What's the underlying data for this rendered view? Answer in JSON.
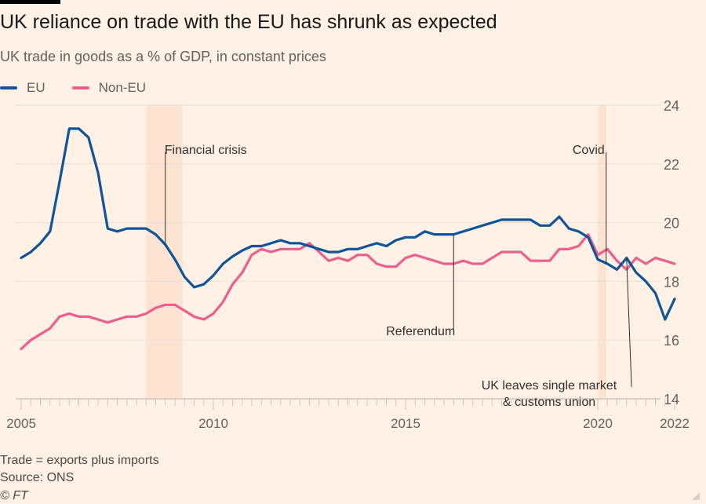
{
  "title": "UK reliance on trade with the EU has shrunk as expected",
  "subtitle": "UK trade in goods as a % of GDP, in constant prices",
  "footer": {
    "note": "Trade = exports plus imports",
    "source": "Source: ONS",
    "copyright": "© FT"
  },
  "colors": {
    "background": "#fff1e5",
    "eu": "#0f5499",
    "non_eu": "#eb5e8d",
    "shade": "#fde3d2",
    "grid": "#e9dfd7"
  },
  "chart_data": {
    "type": "line",
    "title": "UK reliance on trade with the EU has shrunk as expected",
    "subtitle": "UK trade in goods as a % of GDP, in constant prices",
    "x_start": "2005 Q1",
    "x_frequency": "quarterly",
    "xlim": [
      2005,
      2022
    ],
    "ylim": [
      14,
      24
    ],
    "x_ticks": [
      "2005",
      "2010",
      "2015",
      "2020",
      "2022"
    ],
    "y_ticks": [
      "14",
      "16",
      "18",
      "20",
      "22",
      "24"
    ],
    "y_axis_side": "right",
    "grid": true,
    "legend_placement": "top-left",
    "series": [
      {
        "name": "EU",
        "color": "#0f5499",
        "values": [
          18.8,
          19.0,
          19.3,
          19.7,
          21.4,
          23.2,
          23.2,
          22.9,
          21.7,
          19.8,
          19.7,
          19.8,
          19.8,
          19.8,
          19.6,
          19.25,
          18.75,
          18.15,
          17.8,
          17.9,
          18.2,
          18.6,
          18.85,
          19.05,
          19.2,
          19.2,
          19.3,
          19.4,
          19.3,
          19.3,
          19.2,
          19.1,
          19.0,
          19.0,
          19.1,
          19.1,
          19.2,
          19.3,
          19.2,
          19.4,
          19.5,
          19.5,
          19.7,
          19.6,
          19.6,
          19.6,
          19.7,
          19.8,
          19.9,
          20.0,
          20.1,
          20.1,
          20.1,
          20.1,
          19.9,
          19.9,
          20.2,
          19.8,
          19.7,
          19.5,
          18.75,
          18.6,
          18.4,
          18.8,
          18.3,
          18.0,
          17.6,
          16.7,
          17.4
        ]
      },
      {
        "name": "Non-EU",
        "color": "#eb5e8d",
        "values": [
          15.7,
          16.0,
          16.2,
          16.4,
          16.8,
          16.9,
          16.8,
          16.8,
          16.7,
          16.6,
          16.7,
          16.8,
          16.8,
          16.9,
          17.1,
          17.2,
          17.2,
          17.0,
          16.8,
          16.7,
          16.9,
          17.3,
          17.9,
          18.3,
          18.9,
          19.1,
          19.0,
          19.1,
          19.1,
          19.1,
          19.3,
          19.0,
          18.7,
          18.8,
          18.7,
          18.9,
          18.9,
          18.6,
          18.5,
          18.5,
          18.8,
          18.9,
          18.8,
          18.7,
          18.6,
          18.6,
          18.7,
          18.6,
          18.6,
          18.8,
          19.0,
          19.0,
          19.0,
          18.7,
          18.7,
          18.7,
          19.1,
          19.1,
          19.2,
          19.6,
          18.9,
          19.1,
          18.7,
          18.4,
          18.8,
          18.6,
          18.8,
          18.7,
          18.6
        ]
      }
    ],
    "shaded_periods": [
      {
        "label": "Financial crisis",
        "from": 2008.25,
        "to": 2009.2
      },
      {
        "label": "Covid",
        "from": 2020.0,
        "to": 2020.22
      }
    ],
    "annotations": [
      {
        "text": "Financial crisis",
        "x": 2008.75,
        "y_from": 22.4,
        "y_to": 19.2
      },
      {
        "text": "Referendum",
        "x": 2016.25,
        "y_from": 19.6,
        "y_to": 16.3
      },
      {
        "text": "Covid",
        "x": 2020.22,
        "y_from": 22.4,
        "y_to": 18.6
      },
      {
        "text": "UK leaves single market",
        "text2": "& customs union",
        "x": 2020.75,
        "x_to": 2020.88,
        "y_from": 18.8,
        "y_to": 14.4
      }
    ]
  }
}
